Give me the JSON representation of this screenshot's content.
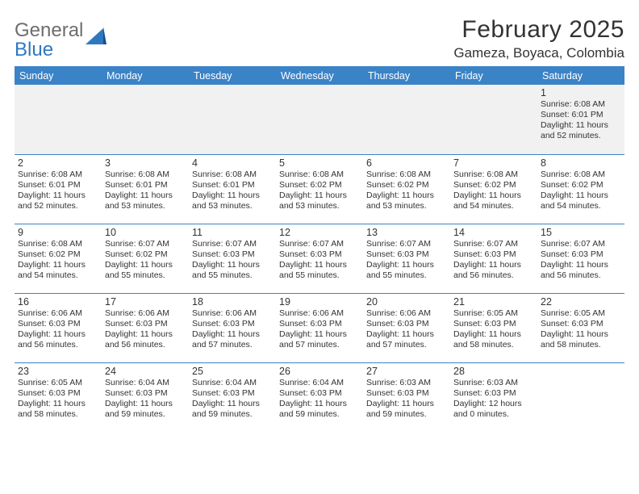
{
  "logo": {
    "part1": "General",
    "part2": "Blue"
  },
  "title": "February 2025",
  "location": "Gameza, Boyaca, Colombia",
  "colors": {
    "header_bg": "#3b83c7",
    "header_text": "#ffffff",
    "row1_bg": "#f1f1f1",
    "grid_line": "#3b83c7",
    "text": "#333333",
    "logo_gray": "#6d6d6d",
    "logo_blue": "#2f78c0"
  },
  "dayHeaders": [
    "Sunday",
    "Monday",
    "Tuesday",
    "Wednesday",
    "Thursday",
    "Friday",
    "Saturday"
  ],
  "weeks": [
    [
      null,
      null,
      null,
      null,
      null,
      null,
      {
        "n": "1",
        "sr": "Sunrise: 6:08 AM",
        "ss": "Sunset: 6:01 PM",
        "dl": "Daylight: 11 hours and 52 minutes."
      }
    ],
    [
      {
        "n": "2",
        "sr": "Sunrise: 6:08 AM",
        "ss": "Sunset: 6:01 PM",
        "dl": "Daylight: 11 hours and 52 minutes."
      },
      {
        "n": "3",
        "sr": "Sunrise: 6:08 AM",
        "ss": "Sunset: 6:01 PM",
        "dl": "Daylight: 11 hours and 53 minutes."
      },
      {
        "n": "4",
        "sr": "Sunrise: 6:08 AM",
        "ss": "Sunset: 6:01 PM",
        "dl": "Daylight: 11 hours and 53 minutes."
      },
      {
        "n": "5",
        "sr": "Sunrise: 6:08 AM",
        "ss": "Sunset: 6:02 PM",
        "dl": "Daylight: 11 hours and 53 minutes."
      },
      {
        "n": "6",
        "sr": "Sunrise: 6:08 AM",
        "ss": "Sunset: 6:02 PM",
        "dl": "Daylight: 11 hours and 53 minutes."
      },
      {
        "n": "7",
        "sr": "Sunrise: 6:08 AM",
        "ss": "Sunset: 6:02 PM",
        "dl": "Daylight: 11 hours and 54 minutes."
      },
      {
        "n": "8",
        "sr": "Sunrise: 6:08 AM",
        "ss": "Sunset: 6:02 PM",
        "dl": "Daylight: 11 hours and 54 minutes."
      }
    ],
    [
      {
        "n": "9",
        "sr": "Sunrise: 6:08 AM",
        "ss": "Sunset: 6:02 PM",
        "dl": "Daylight: 11 hours and 54 minutes."
      },
      {
        "n": "10",
        "sr": "Sunrise: 6:07 AM",
        "ss": "Sunset: 6:02 PM",
        "dl": "Daylight: 11 hours and 55 minutes."
      },
      {
        "n": "11",
        "sr": "Sunrise: 6:07 AM",
        "ss": "Sunset: 6:03 PM",
        "dl": "Daylight: 11 hours and 55 minutes."
      },
      {
        "n": "12",
        "sr": "Sunrise: 6:07 AM",
        "ss": "Sunset: 6:03 PM",
        "dl": "Daylight: 11 hours and 55 minutes."
      },
      {
        "n": "13",
        "sr": "Sunrise: 6:07 AM",
        "ss": "Sunset: 6:03 PM",
        "dl": "Daylight: 11 hours and 55 minutes."
      },
      {
        "n": "14",
        "sr": "Sunrise: 6:07 AM",
        "ss": "Sunset: 6:03 PM",
        "dl": "Daylight: 11 hours and 56 minutes."
      },
      {
        "n": "15",
        "sr": "Sunrise: 6:07 AM",
        "ss": "Sunset: 6:03 PM",
        "dl": "Daylight: 11 hours and 56 minutes."
      }
    ],
    [
      {
        "n": "16",
        "sr": "Sunrise: 6:06 AM",
        "ss": "Sunset: 6:03 PM",
        "dl": "Daylight: 11 hours and 56 minutes."
      },
      {
        "n": "17",
        "sr": "Sunrise: 6:06 AM",
        "ss": "Sunset: 6:03 PM",
        "dl": "Daylight: 11 hours and 56 minutes."
      },
      {
        "n": "18",
        "sr": "Sunrise: 6:06 AM",
        "ss": "Sunset: 6:03 PM",
        "dl": "Daylight: 11 hours and 57 minutes."
      },
      {
        "n": "19",
        "sr": "Sunrise: 6:06 AM",
        "ss": "Sunset: 6:03 PM",
        "dl": "Daylight: 11 hours and 57 minutes."
      },
      {
        "n": "20",
        "sr": "Sunrise: 6:06 AM",
        "ss": "Sunset: 6:03 PM",
        "dl": "Daylight: 11 hours and 57 minutes."
      },
      {
        "n": "21",
        "sr": "Sunrise: 6:05 AM",
        "ss": "Sunset: 6:03 PM",
        "dl": "Daylight: 11 hours and 58 minutes."
      },
      {
        "n": "22",
        "sr": "Sunrise: 6:05 AM",
        "ss": "Sunset: 6:03 PM",
        "dl": "Daylight: 11 hours and 58 minutes."
      }
    ],
    [
      {
        "n": "23",
        "sr": "Sunrise: 6:05 AM",
        "ss": "Sunset: 6:03 PM",
        "dl": "Daylight: 11 hours and 58 minutes."
      },
      {
        "n": "24",
        "sr": "Sunrise: 6:04 AM",
        "ss": "Sunset: 6:03 PM",
        "dl": "Daylight: 11 hours and 59 minutes."
      },
      {
        "n": "25",
        "sr": "Sunrise: 6:04 AM",
        "ss": "Sunset: 6:03 PM",
        "dl": "Daylight: 11 hours and 59 minutes."
      },
      {
        "n": "26",
        "sr": "Sunrise: 6:04 AM",
        "ss": "Sunset: 6:03 PM",
        "dl": "Daylight: 11 hours and 59 minutes."
      },
      {
        "n": "27",
        "sr": "Sunrise: 6:03 AM",
        "ss": "Sunset: 6:03 PM",
        "dl": "Daylight: 11 hours and 59 minutes."
      },
      {
        "n": "28",
        "sr": "Sunrise: 6:03 AM",
        "ss": "Sunset: 6:03 PM",
        "dl": "Daylight: 12 hours and 0 minutes."
      },
      null
    ]
  ]
}
